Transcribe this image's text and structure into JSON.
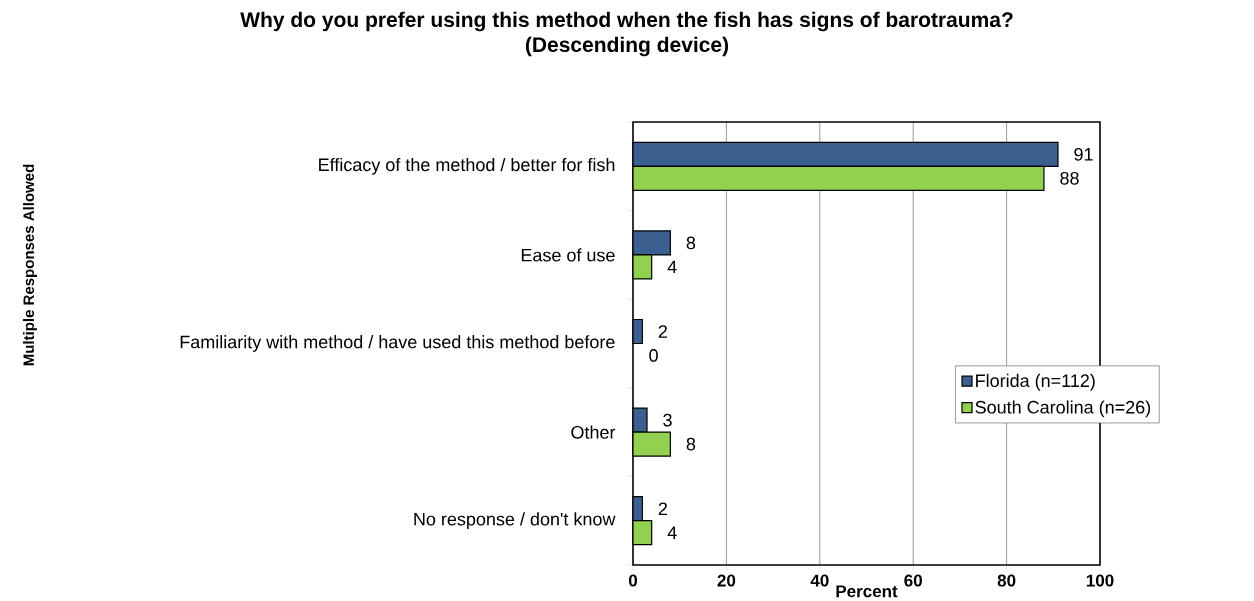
{
  "chart_data": {
    "type": "bar",
    "orientation": "horizontal",
    "title": "Why do you prefer using this method when the fish has signs of barotrauma?",
    "subtitle": "(Descending device)",
    "xlabel": "Percent",
    "annotations": [
      "Multiple Responses Allowed"
    ],
    "categories": [
      "Efficacy of the method / better for fish",
      "Ease of use",
      "Familiarity with method / have used this method before",
      "Other",
      "No response / don't know"
    ],
    "series": [
      {
        "name": "Florida (n=112)",
        "color": "#3b5f8f",
        "values": [
          91,
          8,
          2,
          3,
          2
        ]
      },
      {
        "name": "South Carolina (n=26)",
        "color": "#92d050",
        "values": [
          88,
          4,
          0,
          8,
          4
        ]
      }
    ],
    "xlim": [
      0,
      100
    ],
    "xticks": [
      0,
      20,
      40,
      60,
      80,
      100
    ],
    "grid": "x",
    "legend": "bottom right",
    "data_labels": true
  }
}
